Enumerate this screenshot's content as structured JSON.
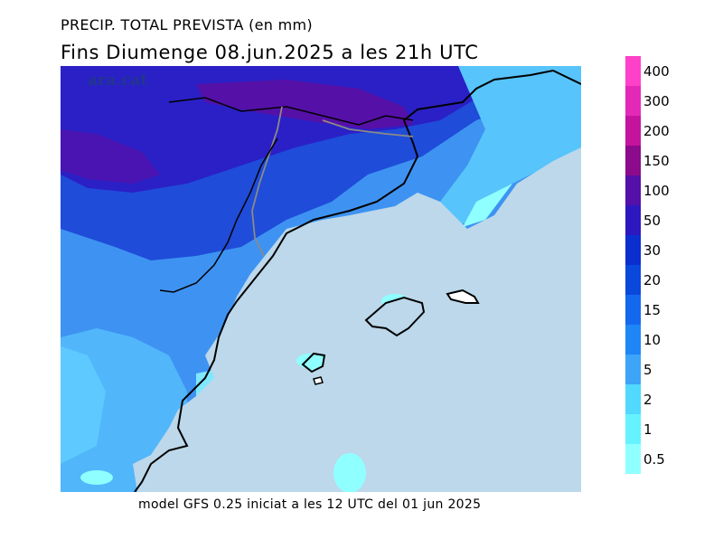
{
  "header": {
    "title_line1": "PRECIP. TOTAL PREVISTA (en mm)",
    "title_line2": "Fins Diumenge 08.jun.2025 a les 21h UTC"
  },
  "footer": {
    "model_text": "model GFS 0.25 iniciat a les 12 UTC del 01 jun 2025"
  },
  "map": {
    "watermark": "ara.cat",
    "sea_color": "#bcd8ea"
  },
  "legend": {
    "unit": "mm",
    "levels": [
      {
        "label": "0.5",
        "color": "#90ffff"
      },
      {
        "label": "1",
        "color": "#66f2ff"
      },
      {
        "label": "2",
        "color": "#52d9ff"
      },
      {
        "label": "5",
        "color": "#3ea4f8"
      },
      {
        "label": "10",
        "color": "#1e86f5"
      },
      {
        "label": "15",
        "color": "#1468ee"
      },
      {
        "label": "20",
        "color": "#0a48dc"
      },
      {
        "label": "30",
        "color": "#0a2ed0"
      },
      {
        "label": "50",
        "color": "#2d18c0"
      },
      {
        "label": "100",
        "color": "#5410a8"
      },
      {
        "label": "150",
        "color": "#8c0a8c"
      },
      {
        "label": "200",
        "color": "#c4149e"
      },
      {
        "label": "300",
        "color": "#e428b8"
      },
      {
        "label": "400",
        "color": "#ff40c8"
      }
    ]
  }
}
